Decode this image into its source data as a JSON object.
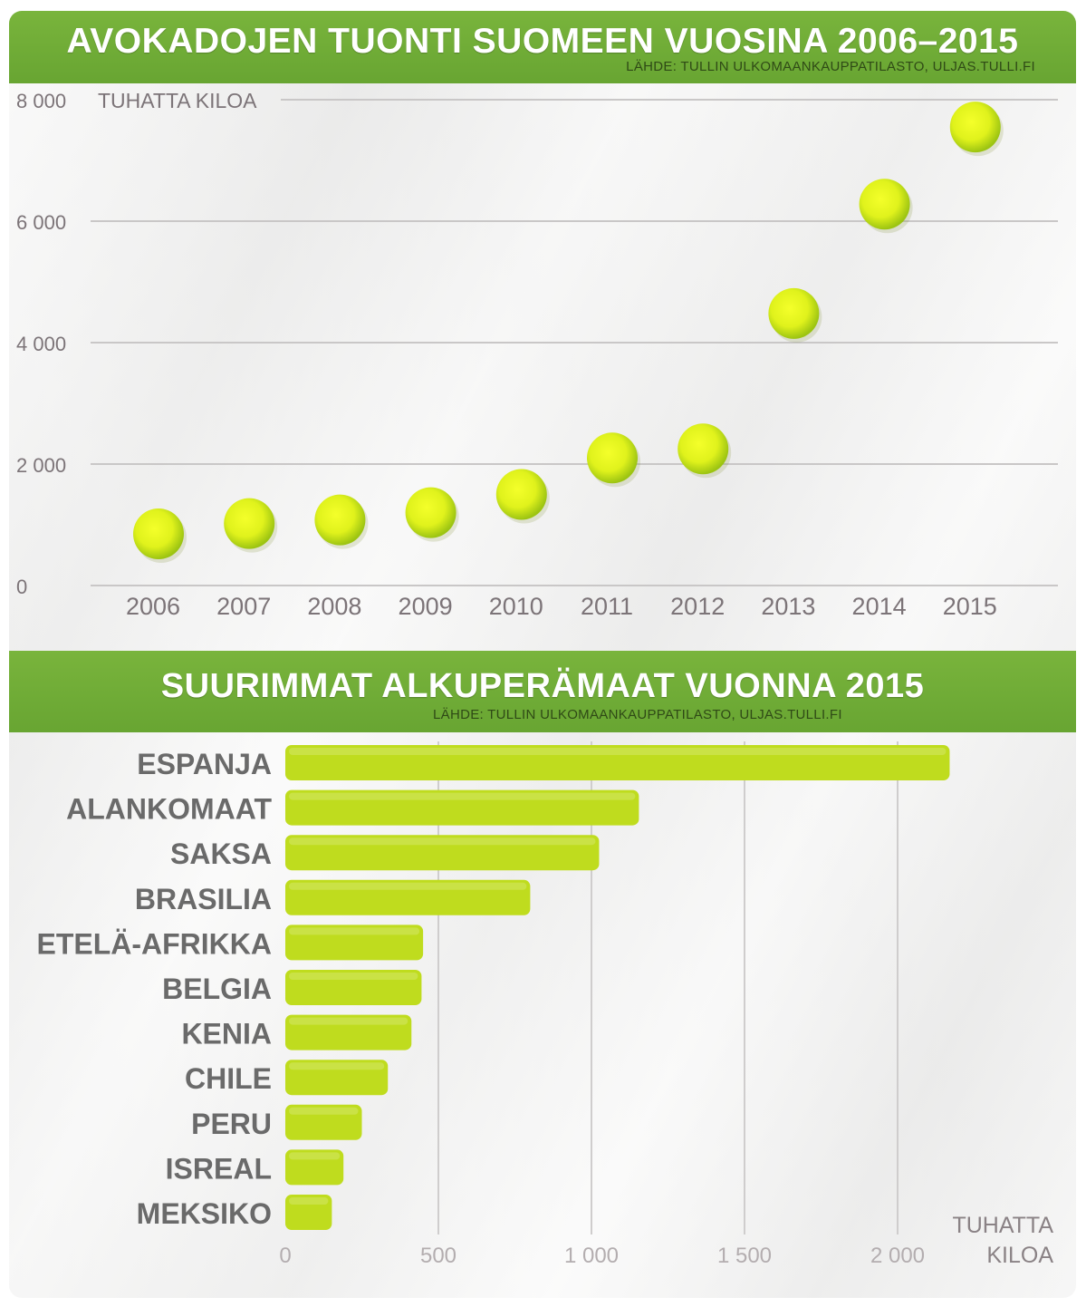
{
  "chart_data": [
    {
      "type": "scatter",
      "title": "AVOKADOJEN TUONTI SUOMEEN VUOSINA 2006–2015",
      "source": "LÄHDE: TULLIN ULKOMAANKAUPPATILASTO, ULJAS.TULLI.FI",
      "ylabel": "TUHATTA KILOA",
      "ylim": [
        0,
        8000
      ],
      "yticks": [
        0,
        2000,
        4000,
        6000,
        8000
      ],
      "ytick_labels": [
        "0",
        "2 000",
        "4 000",
        "6 000",
        "8 000"
      ],
      "grid": true,
      "x": [
        "2006",
        "2007",
        "2008",
        "2009",
        "2010",
        "2011",
        "2012",
        "2013",
        "2014",
        "2015"
      ],
      "values": [
        850,
        1020,
        1080,
        1200,
        1500,
        2100,
        2250,
        4480,
        6280,
        7550
      ],
      "marker_color": "#d8ef1c"
    },
    {
      "type": "bar",
      "orientation": "horizontal",
      "title": "SUURIMMAT ALKUPERÄMAAT VUONNA 2015",
      "source": "LÄHDE: TULLIN ULKOMAANKAUPPATILASTO, ULJAS.TULLI.FI",
      "xlabel": "TUHATTA KILOA",
      "xlim": [
        0,
        2200
      ],
      "xticks": [
        0,
        500,
        1000,
        1500,
        2000
      ],
      "xtick_labels": [
        "0",
        "500",
        "1 000",
        "1 500",
        "2 000"
      ],
      "grid": true,
      "categories": [
        "ESPANJA",
        "ALANKOMAAT",
        "SAKSA",
        "BRASILIA",
        "ETELÄ-AFRIKKA",
        "BELGIA",
        "KENIA",
        "CHILE",
        "PERU",
        "ISREAL",
        "MEKSIKO"
      ],
      "values": [
        2170,
        1155,
        1025,
        800,
        450,
        445,
        412,
        335,
        250,
        190,
        152
      ],
      "bar_color": "#bfdc1e"
    }
  ]
}
